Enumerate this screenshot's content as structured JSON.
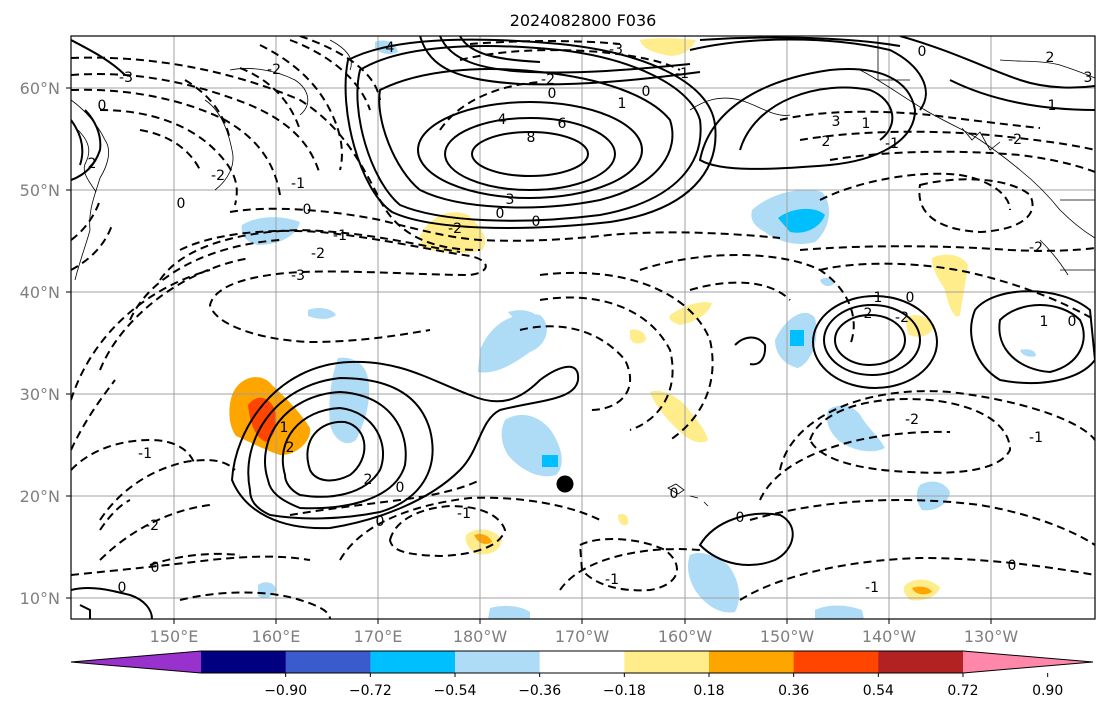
{
  "title": "2024082800 F036",
  "map": {
    "lon_ticks": [
      "150°E",
      "160°E",
      "170°E",
      "180°W",
      "170°W",
      "160°W",
      "150°W",
      "140°W",
      "130°W"
    ],
    "lat_ticks": [
      "60°N",
      "50°N",
      "40°N",
      "30°N",
      "20°N",
      "10°N"
    ],
    "grid": true,
    "marker": "black-dot",
    "contour_labels": [
      "0",
      "1",
      "2",
      "3",
      "4",
      "6",
      "8",
      "-1",
      "-2",
      "-3"
    ]
  },
  "colorbar": {
    "ticks": [
      "−0.90",
      "−0.72",
      "−0.54",
      "−0.36",
      "−0.18",
      "0.18",
      "0.36",
      "0.54",
      "0.72",
      "0.90"
    ],
    "colors": [
      "#9932cc",
      "#000080",
      "#3a5bcc",
      "#00bfff",
      "#aedcf7",
      "#ffffff",
      "#ffec8b",
      "#ffa500",
      "#ff4500",
      "#b22222",
      "#ff88aa"
    ]
  }
}
